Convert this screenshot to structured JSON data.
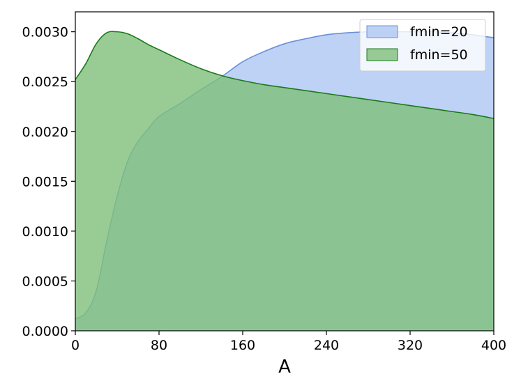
{
  "chart_data": {
    "type": "area",
    "title": "",
    "xlabel": "A",
    "ylabel": "",
    "xlim": [
      0,
      400
    ],
    "ylim": [
      0,
      0.0032
    ],
    "x_ticks": [
      "0",
      "80",
      "160",
      "240",
      "320",
      "400"
    ],
    "y_ticks": [
      "0.0000",
      "0.0005",
      "0.0010",
      "0.0015",
      "0.0020",
      "0.0025",
      "0.0030"
    ],
    "grid": false,
    "legend_position": "top-right",
    "series": [
      {
        "name": "fmin=20",
        "fill_color": "#aec7f2",
        "line_color": "#6a8fd8",
        "x": [
          0,
          10,
          20,
          30,
          40,
          50,
          60,
          70,
          80,
          100,
          120,
          140,
          160,
          180,
          200,
          220,
          240,
          260,
          280,
          300,
          320,
          340,
          360,
          380,
          400
        ],
        "y": [
          0.00012,
          0.00018,
          0.0004,
          0.0009,
          0.00135,
          0.0017,
          0.0019,
          0.00203,
          0.00215,
          0.00228,
          0.00242,
          0.00255,
          0.0027,
          0.0028,
          0.00288,
          0.00293,
          0.00297,
          0.00299,
          0.003,
          0.003,
          0.003,
          0.003,
          0.00299,
          0.00297,
          0.00294
        ]
      },
      {
        "name": "fmin=50",
        "fill_color": "#7fbf7b",
        "line_color": "#1a7a1a",
        "x": [
          0,
          10,
          20,
          30,
          40,
          50,
          60,
          70,
          80,
          100,
          120,
          140,
          160,
          180,
          200,
          220,
          240,
          260,
          280,
          300,
          320,
          340,
          360,
          380,
          400
        ],
        "y": [
          0.00252,
          0.00268,
          0.00288,
          0.00299,
          0.003,
          0.00298,
          0.00293,
          0.00287,
          0.00282,
          0.00272,
          0.00263,
          0.00256,
          0.00251,
          0.00247,
          0.00244,
          0.00241,
          0.00238,
          0.00235,
          0.00232,
          0.00229,
          0.00226,
          0.00223,
          0.0022,
          0.00217,
          0.00213
        ]
      }
    ]
  }
}
